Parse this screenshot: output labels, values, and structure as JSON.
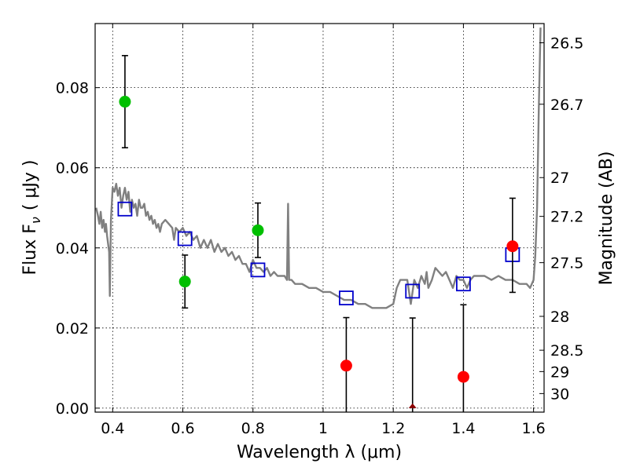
{
  "chart_data": {
    "type": "scatter",
    "xlabel": "Wavelength  λ (μm)",
    "ylabel": "Flux  F",
    "ylabel_sub": "ν",
    "ylabel_unit": "( μJy )",
    "y2label": "Magnitude (AB)",
    "xlim": [
      0.35,
      1.63
    ],
    "ylim": [
      -0.001,
      0.096
    ],
    "grid": true,
    "x_ticks": [
      0.4,
      0.6,
      0.8,
      1.0,
      1.2,
      1.4,
      1.6
    ],
    "x_tick_labels": [
      "0.4",
      "0.6",
      "0.8",
      "1",
      "1.2",
      "1.4",
      "1.6"
    ],
    "y_ticks": [
      0.0,
      0.02,
      0.04,
      0.06,
      0.08
    ],
    "y_tick_labels": [
      "0.00",
      "0.02",
      "0.04",
      "0.06",
      "0.08"
    ],
    "mag_ticks": [
      26.5,
      26.7,
      27,
      27.2,
      27.5,
      28,
      28.5,
      29,
      30
    ],
    "mag_tick_labels": [
      "26.5",
      "26.7",
      "27",
      "27.2",
      "27.5",
      "28",
      "28.5",
      "29",
      "30"
    ],
    "colors": {
      "detected": "#00bf00",
      "upper_limit": "#ff0000",
      "model_phot": "#0000cc",
      "template": "#808080",
      "nondetection_marker": "#8b0000"
    },
    "green_points": [
      {
        "x": 0.435,
        "y": 0.0765,
        "err_lo": 0.0115,
        "err_hi": 0.0115
      },
      {
        "x": 0.606,
        "y": 0.0316,
        "err_lo": 0.0066,
        "err_hi": 0.0066
      },
      {
        "x": 0.814,
        "y": 0.0444,
        "err_lo": 0.0068,
        "err_hi": 0.0068
      }
    ],
    "red_points": [
      {
        "x": 1.066,
        "y": 0.0106,
        "err_lo": 0.0116,
        "err_hi": 0.012
      },
      {
        "x": 1.4,
        "y": 0.0078,
        "err_lo": 0.0088,
        "err_hi": 0.018
      },
      {
        "x": 1.54,
        "y": 0.0404,
        "err_lo": 0.0115,
        "err_hi": 0.012
      }
    ],
    "nondetection_points": [
      {
        "x": 1.255,
        "y": 0.0,
        "err_hi": 0.0225
      }
    ],
    "model_squares": [
      {
        "x": 0.435,
        "y": 0.0497
      },
      {
        "x": 0.606,
        "y": 0.0423
      },
      {
        "x": 0.814,
        "y": 0.0345
      },
      {
        "x": 1.066,
        "y": 0.0275
      },
      {
        "x": 1.255,
        "y": 0.0292
      },
      {
        "x": 1.4,
        "y": 0.031
      },
      {
        "x": 1.54,
        "y": 0.0383
      }
    ],
    "template_x": [
      0.353,
      0.358,
      0.362,
      0.366,
      0.37,
      0.374,
      0.378,
      0.381,
      0.384,
      0.387,
      0.39,
      0.392,
      0.395,
      0.4,
      0.405,
      0.41,
      0.415,
      0.42,
      0.425,
      0.43,
      0.435,
      0.44,
      0.445,
      0.45,
      0.455,
      0.46,
      0.465,
      0.47,
      0.475,
      0.48,
      0.485,
      0.49,
      0.495,
      0.5,
      0.505,
      0.51,
      0.515,
      0.52,
      0.525,
      0.53,
      0.535,
      0.54,
      0.55,
      0.56,
      0.57,
      0.575,
      0.58,
      0.59,
      0.6,
      0.61,
      0.62,
      0.63,
      0.64,
      0.65,
      0.66,
      0.67,
      0.68,
      0.69,
      0.7,
      0.71,
      0.72,
      0.73,
      0.74,
      0.75,
      0.76,
      0.77,
      0.78,
      0.79,
      0.8,
      0.81,
      0.82,
      0.83,
      0.84,
      0.85,
      0.86,
      0.87,
      0.88,
      0.89,
      0.897,
      0.9,
      0.903,
      0.905,
      0.91,
      0.92,
      0.94,
      0.96,
      0.98,
      1.0,
      1.02,
      1.04,
      1.06,
      1.08,
      1.1,
      1.12,
      1.14,
      1.16,
      1.18,
      1.2,
      1.21,
      1.22,
      1.23,
      1.24,
      1.25,
      1.26,
      1.27,
      1.28,
      1.29,
      1.295,
      1.3,
      1.31,
      1.32,
      1.33,
      1.34,
      1.35,
      1.36,
      1.37,
      1.38,
      1.39,
      1.4,
      1.41,
      1.42,
      1.43,
      1.44,
      1.46,
      1.48,
      1.5,
      1.52,
      1.54,
      1.56,
      1.58,
      1.59,
      1.6,
      1.605,
      1.61,
      1.615,
      1.62
    ],
    "template_y": [
      0.05,
      0.048,
      0.046,
      0.049,
      0.045,
      0.047,
      0.044,
      0.046,
      0.043,
      0.041,
      0.039,
      0.028,
      0.047,
      0.055,
      0.054,
      0.056,
      0.053,
      0.055,
      0.05,
      0.053,
      0.055,
      0.052,
      0.054,
      0.049,
      0.052,
      0.05,
      0.051,
      0.048,
      0.052,
      0.05,
      0.05,
      0.051,
      0.048,
      0.049,
      0.047,
      0.048,
      0.046,
      0.047,
      0.045,
      0.046,
      0.044,
      0.046,
      0.047,
      0.046,
      0.045,
      0.042,
      0.045,
      0.044,
      0.045,
      0.043,
      0.044,
      0.042,
      0.043,
      0.04,
      0.042,
      0.04,
      0.042,
      0.039,
      0.041,
      0.039,
      0.04,
      0.038,
      0.039,
      0.037,
      0.038,
      0.036,
      0.036,
      0.034,
      0.037,
      0.035,
      0.035,
      0.034,
      0.035,
      0.033,
      0.034,
      0.033,
      0.033,
      0.033,
      0.032,
      0.051,
      0.032,
      0.032,
      0.032,
      0.031,
      0.031,
      0.03,
      0.03,
      0.029,
      0.029,
      0.028,
      0.027,
      0.027,
      0.026,
      0.026,
      0.025,
      0.025,
      0.025,
      0.026,
      0.03,
      0.032,
      0.032,
      0.032,
      0.026,
      0.032,
      0.03,
      0.033,
      0.031,
      0.034,
      0.03,
      0.032,
      0.035,
      0.034,
      0.033,
      0.034,
      0.032,
      0.03,
      0.033,
      0.032,
      0.032,
      0.03,
      0.032,
      0.033,
      0.033,
      0.033,
      0.032,
      0.033,
      0.032,
      0.032,
      0.031,
      0.031,
      0.03,
      0.032,
      0.038,
      0.05,
      0.075,
      0.095
    ]
  }
}
